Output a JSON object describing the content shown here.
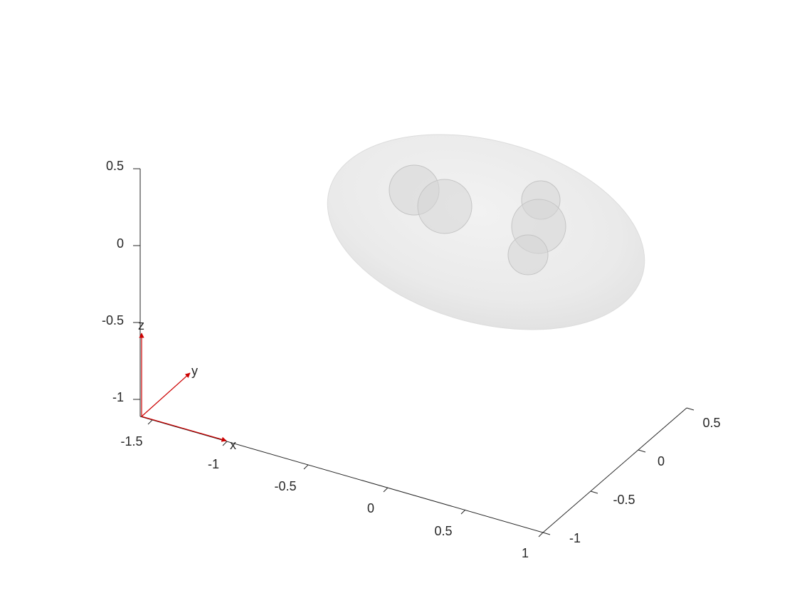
{
  "figure": {
    "type": "3d-surface-plot",
    "shapes": [
      {
        "kind": "ellipsoid",
        "color": "#e6e6e6",
        "opacity": "semi-transparent"
      },
      {
        "kind": "sphere",
        "color": "#d9d9d9",
        "opacity": "semi-transparent"
      },
      {
        "kind": "sphere",
        "color": "#d9d9d9",
        "opacity": "semi-transparent"
      },
      {
        "kind": "sphere",
        "color": "#d9d9d9",
        "opacity": "semi-transparent"
      },
      {
        "kind": "sphere",
        "color": "#d9d9d9",
        "opacity": "semi-transparent"
      },
      {
        "kind": "sphere",
        "color": "#d9d9d9",
        "opacity": "semi-transparent"
      }
    ]
  },
  "axes": {
    "x_ticks": [
      "-1.5",
      "-1",
      "-0.5",
      "0",
      "0.5",
      "1"
    ],
    "y_ticks": [
      "-1",
      "-0.5",
      "0",
      "0.5"
    ],
    "z_ticks": [
      "0.5",
      "0",
      "-0.5",
      "-1"
    ],
    "axis_color": "#262626"
  },
  "triad": {
    "color": "#cc0000",
    "labels": {
      "x": "x",
      "y": "y",
      "z": "z"
    }
  }
}
